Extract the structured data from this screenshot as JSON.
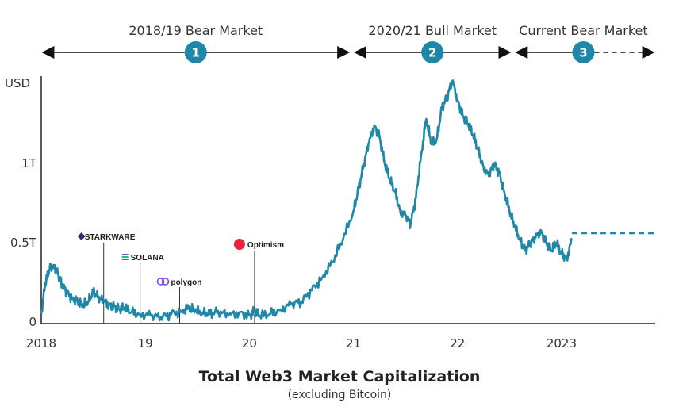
{
  "chart_data": {
    "type": "line",
    "title": "Total Web3 Market Capitalization",
    "subtitle": "(excluding Bitcoin)",
    "ylabel": "USD",
    "yticks": [
      {
        "value": 0,
        "label": "0"
      },
      {
        "value": 0.5,
        "label": "0.5T"
      },
      {
        "value": 1.0,
        "label": "1T"
      }
    ],
    "ylim": [
      0,
      1.5
    ],
    "xlim": [
      2018.0,
      2023.9
    ],
    "xticks": [
      {
        "value": 2018.0,
        "label": "2018"
      },
      {
        "value": 2019.0,
        "label": "19"
      },
      {
        "value": 2020.0,
        "label": "20"
      },
      {
        "value": 2021.0,
        "label": "21"
      },
      {
        "value": 2022.0,
        "label": "22"
      },
      {
        "value": 2023.0,
        "label": "2023"
      }
    ],
    "series": [
      {
        "color": "#1f87a8",
        "x": [
          2018.0,
          2018.04,
          2018.08,
          2018.12,
          2018.16,
          2018.2,
          2018.25,
          2018.3,
          2018.35,
          2018.4,
          2018.45,
          2018.5,
          2018.55,
          2018.6,
          2018.65,
          2018.7,
          2018.75,
          2018.8,
          2018.87,
          2018.95,
          2019.05,
          2019.15,
          2019.25,
          2019.35,
          2019.42,
          2019.48,
          2019.55,
          2019.62,
          2019.7,
          2019.8,
          2019.9,
          2020.0,
          2020.05,
          2020.1,
          2020.2,
          2020.3,
          2020.4,
          2020.5,
          2020.6,
          2020.7,
          2020.8,
          2020.9,
          2021.0,
          2021.05,
          2021.1,
          2021.15,
          2021.2,
          2021.25,
          2021.3,
          2021.35,
          2021.4,
          2021.45,
          2021.5,
          2021.55,
          2021.6,
          2021.65,
          2021.7,
          2021.75,
          2021.8,
          2021.85,
          2021.9,
          2021.95,
          2022.0,
          2022.05,
          2022.1,
          2022.15,
          2022.2,
          2022.25,
          2022.3,
          2022.35,
          2022.4,
          2022.45,
          2022.5,
          2022.55,
          2022.6,
          2022.65,
          2022.7,
          2022.75,
          2022.8,
          2022.85,
          2022.9,
          2022.95,
          2023.0,
          2023.05,
          2023.1
        ],
        "y": [
          0.05,
          0.25,
          0.33,
          0.36,
          0.3,
          0.24,
          0.18,
          0.15,
          0.13,
          0.1,
          0.13,
          0.19,
          0.16,
          0.13,
          0.11,
          0.1,
          0.08,
          0.09,
          0.06,
          0.05,
          0.04,
          0.03,
          0.05,
          0.07,
          0.09,
          0.07,
          0.06,
          0.05,
          0.07,
          0.04,
          0.06,
          0.04,
          0.07,
          0.04,
          0.05,
          0.08,
          0.11,
          0.13,
          0.2,
          0.28,
          0.38,
          0.52,
          0.7,
          0.84,
          1.0,
          1.13,
          1.24,
          1.17,
          1.0,
          0.9,
          0.82,
          0.7,
          0.67,
          0.62,
          0.78,
          1.05,
          1.28,
          1.12,
          1.15,
          1.35,
          1.42,
          1.52,
          1.4,
          1.3,
          1.25,
          1.18,
          1.08,
          0.98,
          0.92,
          1.0,
          0.94,
          0.82,
          0.7,
          0.6,
          0.52,
          0.45,
          0.5,
          0.53,
          0.58,
          0.5,
          0.45,
          0.5,
          0.43,
          0.4,
          0.52
        ],
        "projection": {
          "x": [
            2023.1,
            2023.9
          ],
          "y": [
            0.56,
            0.56
          ]
        }
      }
    ],
    "phases": [
      {
        "number": "1",
        "label": "2018/19 Bear Market",
        "x_start": 2018.0,
        "x_end": 2021.0,
        "dashed_tail": false
      },
      {
        "number": "2",
        "label": "2020/21 Bull Market",
        "x_start": 2021.0,
        "x_end": 2022.55,
        "dashed_tail": false
      },
      {
        "number": "3",
        "label": "Current Bear Market",
        "x_start": 2022.55,
        "x_end": 2023.9,
        "dashed_tail": true
      }
    ],
    "events": [
      {
        "name": "STARKWARE",
        "x": 2018.6,
        "y": 0.5,
        "logo": "starkware-logo",
        "color": "#2b2e6e"
      },
      {
        "name": "SOLANA",
        "x": 2018.95,
        "y": 0.37,
        "logo": "solana-logo",
        "color": "#6a5acd"
      },
      {
        "name": "polygon",
        "x": 2019.33,
        "y": 0.22,
        "logo": "polygon-logo",
        "color": "#8247e5"
      },
      {
        "name": "Optimism",
        "x": 2020.05,
        "y": 0.45,
        "logo": "optimism-logo",
        "color": "#e8253a"
      }
    ],
    "grid": false,
    "accent_color": "#1f87a8"
  }
}
